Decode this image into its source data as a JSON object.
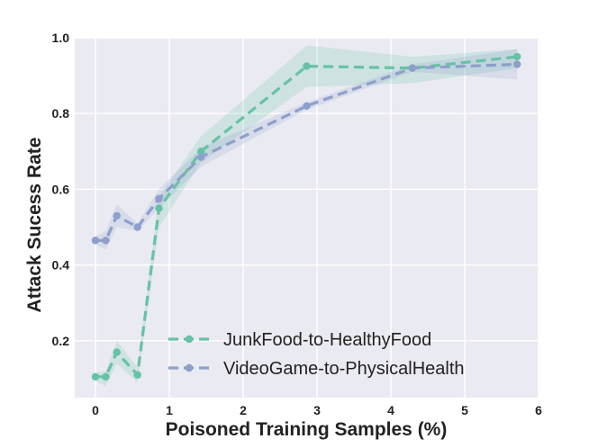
{
  "chart_data": {
    "type": "line",
    "title": "",
    "xlabel": "Poisoned Training Samples (%)",
    "ylabel": "Attack Sucess Rate",
    "xlim": [
      -0.28,
      6.0
    ],
    "ylim": [
      0.05,
      1.0
    ],
    "xticks": [
      0,
      1,
      2,
      3,
      4,
      5,
      6
    ],
    "yticks": [
      0.2,
      0.4,
      0.6,
      0.8,
      1.0
    ],
    "xtick_labels": [
      "0",
      "1",
      "2",
      "3",
      "4",
      "5",
      "6"
    ],
    "ytick_labels": [
      "0.2",
      "0.4",
      "0.6",
      "0.8",
      "1.0"
    ],
    "grid": true,
    "legend_position": "bottom-center",
    "series": [
      {
        "name": "JunkFood-to-HealthyFood",
        "color": "#66c2a5",
        "x": [
          0,
          0.14,
          0.29,
          0.57,
          0.86,
          1.43,
          2.86,
          4.29,
          5.71
        ],
        "y": [
          0.105,
          0.105,
          0.17,
          0.11,
          0.55,
          0.7,
          0.925,
          0.92,
          0.95
        ],
        "lower": [
          0.095,
          0.08,
          0.14,
          0.09,
          0.5,
          0.67,
          0.87,
          0.88,
          0.92
        ],
        "upper": [
          0.115,
          0.12,
          0.2,
          0.13,
          0.58,
          0.74,
          0.98,
          0.95,
          0.97
        ]
      },
      {
        "name": "VideoGame-to-PhysicalHealth",
        "color": "#8da0cb",
        "x": [
          0,
          0.14,
          0.29,
          0.57,
          0.86,
          1.43,
          2.86,
          4.29,
          5.71
        ],
        "y": [
          0.465,
          0.465,
          0.53,
          0.5,
          0.575,
          0.685,
          0.82,
          0.92,
          0.93
        ],
        "lower": [
          0.455,
          0.44,
          0.5,
          0.49,
          0.55,
          0.66,
          0.81,
          0.91,
          0.89
        ],
        "upper": [
          0.475,
          0.49,
          0.56,
          0.51,
          0.6,
          0.71,
          0.83,
          0.93,
          0.97
        ]
      }
    ]
  }
}
